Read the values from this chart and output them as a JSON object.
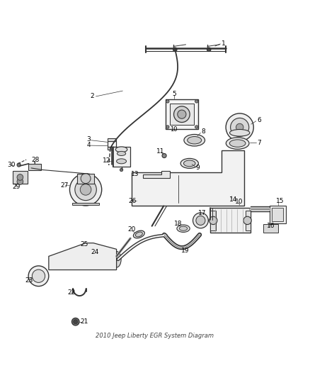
{
  "title": "2010 Jeep Liberty EGR System Diagram",
  "background_color": "#ffffff",
  "line_color": "#333333",
  "label_color": "#000000",
  "figsize": [
    4.38,
    5.33
  ],
  "dpi": 100
}
